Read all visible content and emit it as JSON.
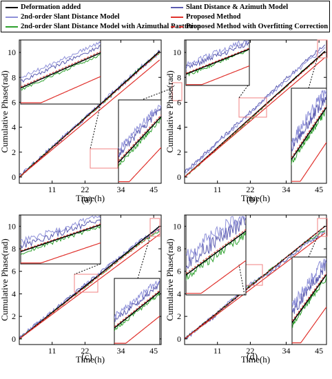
{
  "legend": [
    {
      "label": "Deformation added",
      "color": "#000000",
      "dash": false
    },
    {
      "label": "Slant Distance & Azimuth Model",
      "color": "#6a6ab8",
      "dash": false
    },
    {
      "label": "2nd-order Slant Distance Model",
      "color": "#8d8fd8",
      "dash": false
    },
    {
      "label": "Proposed Method",
      "color": "#e0312c",
      "dash": false
    },
    {
      "label": "2nd-order Slant Distance Model with Azimuthal Parttition",
      "color": "#2ca02c",
      "dash": false
    },
    {
      "label": "Proposed Method with Overfitting Correction",
      "color": "#e0312c",
      "dash": true
    }
  ],
  "colors": {
    "deformation": "#000000",
    "slant_azimuth": "#5a5ab0",
    "second_order": "#8d8fd8",
    "proposed": "#e0312c",
    "partition": "#2ca02c",
    "overfit": "#e0312c",
    "zoom_box": "#f08080"
  },
  "chart_data": [
    {
      "type": "line",
      "panel_label": "(a)",
      "xlabel": "Time(h)",
      "ylabel": "Cumulative Phase(rad)",
      "xticks": [
        11,
        22,
        34,
        45
      ],
      "yticks": [
        0,
        2,
        4,
        6,
        8,
        10
      ],
      "xlim": [
        0,
        47.5
      ],
      "ylim": [
        -0.5,
        11
      ],
      "series": [
        {
          "name": "Deformation added",
          "x": [
            0,
            47
          ],
          "y": [
            0,
            10.1
          ]
        },
        {
          "name": "Slant Distance & Azimuth Model",
          "x": [
            0,
            10,
            20,
            30,
            40,
            47
          ],
          "y": [
            0.05,
            2.2,
            4.3,
            6.4,
            8.6,
            10.1
          ]
        },
        {
          "name": "2nd-order Slant Distance Model",
          "x": [
            0,
            10,
            20,
            30,
            40,
            47
          ],
          "y": [
            0.05,
            2.2,
            4.3,
            6.5,
            8.7,
            10.0
          ]
        },
        {
          "name": "2nd-order Slant Distance Model with Azimuthal Parttition",
          "x": [
            0,
            10,
            20,
            30,
            40,
            47
          ],
          "y": [
            0.0,
            2.15,
            4.3,
            6.4,
            8.6,
            10.0
          ]
        },
        {
          "name": "Proposed Method",
          "x": [
            0,
            47
          ],
          "y": [
            0,
            9.4
          ]
        },
        {
          "name": "Proposed Method with Overfitting Correction",
          "x": [
            0,
            47
          ],
          "y": [
            0,
            10.0
          ]
        }
      ]
    },
    {
      "type": "line",
      "panel_label": "(b)",
      "xlabel": "Time(h)",
      "ylabel": "Cumulative Phase(rad)",
      "xticks": [
        11,
        22,
        34,
        45
      ],
      "yticks": [
        0,
        2,
        4,
        6,
        8,
        10
      ],
      "xlim": [
        0,
        47.5
      ],
      "ylim": [
        -0.5,
        11
      ],
      "series": [
        {
          "name": "Deformation added",
          "x": [
            0,
            47
          ],
          "y": [
            0,
            10.1
          ]
        },
        {
          "name": "Slant Distance & Azimuth Model",
          "x": [
            0,
            10,
            20,
            30,
            40,
            47
          ],
          "y": [
            0.4,
            2.6,
            4.8,
            7.0,
            9.2,
            10.6
          ]
        },
        {
          "name": "2nd-order Slant Distance Model",
          "x": [
            0,
            10,
            20,
            30,
            40,
            47
          ],
          "y": [
            0.3,
            2.5,
            4.7,
            6.9,
            9.0,
            10.4
          ]
        },
        {
          "name": "2nd-order Slant Distance Model with Azimuthal Parttition",
          "x": [
            0,
            10,
            20,
            30,
            40,
            47
          ],
          "y": [
            0.0,
            2.1,
            4.2,
            6.4,
            8.6,
            10.0
          ]
        },
        {
          "name": "Proposed Method",
          "x": [
            0,
            47
          ],
          "y": [
            0,
            9.6
          ]
        },
        {
          "name": "Proposed Method with Overfitting Correction",
          "x": [
            0,
            47
          ],
          "y": [
            0,
            10.0
          ]
        }
      ]
    },
    {
      "type": "line",
      "panel_label": "(c)",
      "xlabel": "Time(h)",
      "ylabel": "Cumulative Phase(rad)",
      "xticks": [
        11,
        22,
        34,
        45
      ],
      "yticks": [
        0,
        2,
        4,
        6,
        8,
        10
      ],
      "xlim": [
        0,
        47.5
      ],
      "ylim": [
        -0.5,
        11
      ],
      "series": [
        {
          "name": "Deformation added",
          "x": [
            0,
            47
          ],
          "y": [
            0,
            10.0
          ]
        },
        {
          "name": "Slant Distance & Azimuth Model",
          "x": [
            0,
            10,
            20,
            30,
            40,
            47
          ],
          "y": [
            0.1,
            2.2,
            4.4,
            6.5,
            8.6,
            9.8
          ]
        },
        {
          "name": "2nd-order Slant Distance Model",
          "x": [
            0,
            10,
            20,
            30,
            40,
            47
          ],
          "y": [
            0.1,
            2.2,
            4.3,
            6.5,
            8.6,
            9.9
          ]
        },
        {
          "name": "2nd-order Slant Distance Model with Azimuthal Parttition",
          "x": [
            0,
            10,
            20,
            30,
            40,
            47
          ],
          "y": [
            0.0,
            2.1,
            4.2,
            6.3,
            8.4,
            9.6
          ]
        },
        {
          "name": "Proposed Method",
          "x": [
            0,
            47
          ],
          "y": [
            0,
            9.3
          ]
        },
        {
          "name": "Proposed Method with Overfitting Correction",
          "x": [
            0,
            47
          ],
          "y": [
            0,
            9.8
          ]
        }
      ]
    },
    {
      "type": "line",
      "panel_label": "(d)",
      "xlabel": "Time(h)",
      "ylabel": "Cumulative Phase(rad)",
      "xticks": [
        11,
        22,
        34,
        45
      ],
      "yticks": [
        0,
        2,
        4,
        6,
        8,
        10
      ],
      "xlim": [
        0,
        47.5
      ],
      "ylim": [
        -0.5,
        11
      ],
      "series": [
        {
          "name": "Deformation added",
          "x": [
            0,
            47
          ],
          "y": [
            0,
            10.0
          ]
        },
        {
          "name": "Slant Distance & Azimuth Model",
          "x": [
            0,
            10,
            20,
            30,
            40,
            47
          ],
          "y": [
            0.0,
            2.0,
            4.4,
            6.2,
            8.3,
            9.5
          ]
        },
        {
          "name": "2nd-order Slant Distance Model",
          "x": [
            0,
            10,
            20,
            30,
            40,
            47
          ],
          "y": [
            0.0,
            2.1,
            4.5,
            6.3,
            8.4,
            9.6
          ]
        },
        {
          "name": "2nd-order Slant Distance Model with Azimuthal Parttition",
          "x": [
            0,
            10,
            20,
            30,
            40,
            47
          ],
          "y": [
            0.0,
            2.1,
            4.3,
            6.4,
            8.5,
            9.7
          ]
        },
        {
          "name": "Proposed Method",
          "x": [
            0,
            47
          ],
          "y": [
            0,
            9.4
          ]
        },
        {
          "name": "Proposed Method with Overfitting Correction",
          "x": [
            0,
            47
          ],
          "y": [
            0,
            10.0
          ]
        }
      ]
    }
  ]
}
